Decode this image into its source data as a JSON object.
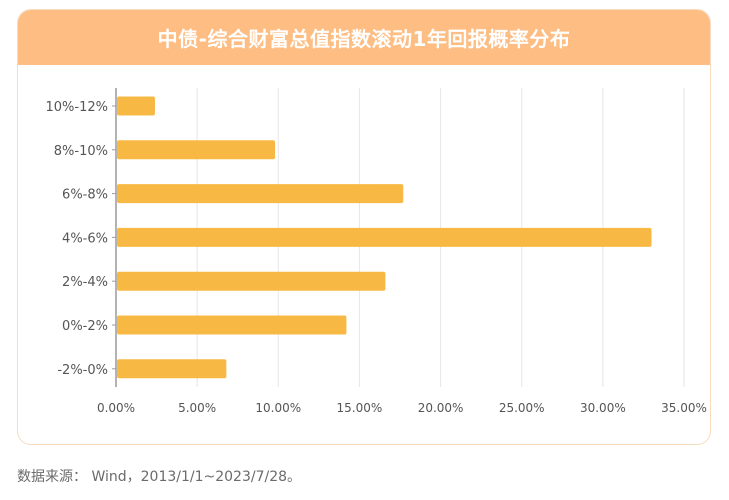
{
  "header": {
    "title": "中债-综合财富总值指数滚动1年回报概率分布"
  },
  "footer": {
    "source": "数据来源： Wind，2013/1/1~2023/7/28。"
  },
  "colors": {
    "bar": "#f7b944",
    "header": "#fdbd83",
    "grid": "#e6e6e6",
    "axis": "#555555"
  },
  "chart_data": {
    "type": "bar",
    "orientation": "horizontal",
    "title": "中债-综合财富总值指数滚动1年回报概率分布",
    "categories": [
      "10%-12%",
      "8%-10%",
      "6%-8%",
      "4%-6%",
      "2%-4%",
      "0%-2%",
      "-2%-0%"
    ],
    "values": [
      2.4,
      9.8,
      17.7,
      33.0,
      16.6,
      14.2,
      6.8
    ],
    "xlim": [
      0,
      35
    ],
    "xticks": [
      "0.00%",
      "5.00%",
      "10.00%",
      "15.00%",
      "20.00%",
      "25.00%",
      "30.00%",
      "35.00%"
    ],
    "grid": true,
    "legend": "none"
  }
}
